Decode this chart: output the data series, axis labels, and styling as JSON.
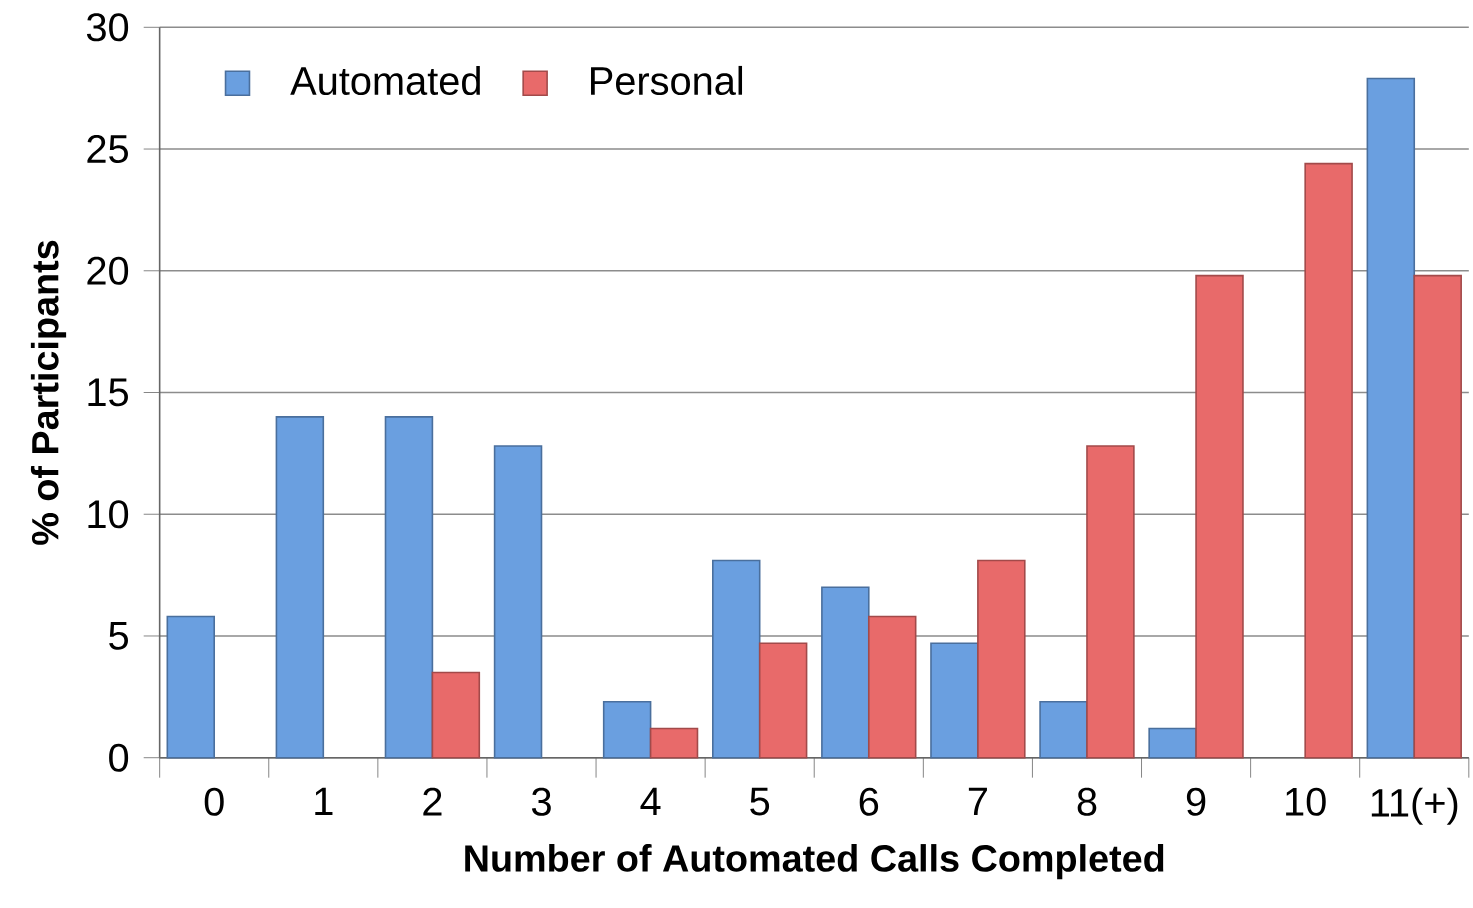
{
  "chart_data": {
    "type": "bar",
    "xlabel": "Number of Automated Calls Completed",
    "ylabel": "% of Participants",
    "categories": [
      "0",
      "1",
      "2",
      "3",
      "4",
      "5",
      "6",
      "7",
      "8",
      "9",
      "10",
      "11(+)"
    ],
    "series": [
      {
        "name": "Automated",
        "color": "#6a9fe0",
        "values": [
          5.8,
          14.0,
          14.0,
          12.8,
          2.3,
          8.1,
          7.0,
          4.7,
          2.3,
          1.2,
          null,
          27.9
        ]
      },
      {
        "name": "Personal",
        "color": "#e86a6a",
        "values": [
          null,
          null,
          3.5,
          null,
          1.2,
          4.7,
          5.8,
          8.1,
          12.8,
          19.8,
          24.4,
          19.8
        ]
      }
    ],
    "ylim": [
      0,
      30
    ],
    "yticks": [
      0,
      5,
      10,
      15,
      20,
      25,
      30
    ],
    "grid": "y",
    "legend": "top left"
  }
}
